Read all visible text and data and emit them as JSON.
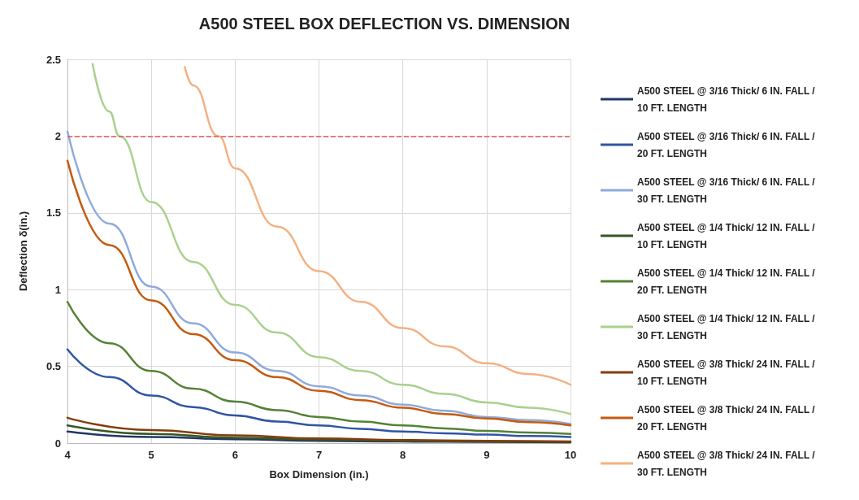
{
  "chart_data": {
    "type": "line",
    "title": "A500 STEEL BOX DEFLECTION VS. DIMENSION",
    "xlabel": "Box Dimension (in.)",
    "ylabel": "Deflection δ(in.)",
    "xlim": [
      4,
      10
    ],
    "xticks": [
      4,
      5,
      6,
      7,
      8,
      9,
      10
    ],
    "ylim": [
      0,
      2.5
    ],
    "yticks": [
      0,
      0.5,
      1,
      1.5,
      2,
      2.5
    ],
    "grid": true,
    "legend": "right",
    "series": [
      {
        "name": "A500 STEEL @ 3/16 Thick/ 6 IN. FALL / 10 FT. LENGTH",
        "color": "#203864",
        "x": [
          4,
          5,
          6,
          7,
          8,
          9,
          10
        ],
        "values": [
          0.075,
          0.04,
          0.025,
          0.015,
          0.01,
          0.008,
          0.005
        ]
      },
      {
        "name": "A500 STEEL @ 3/16 Thick/ 6 IN. FALL / 20 FT. LENGTH",
        "color": "#2f55a4",
        "x": [
          4,
          4.5,
          5,
          5.5,
          6,
          6.5,
          7,
          7.5,
          8,
          8.5,
          9,
          9.5,
          10
        ],
        "values": [
          0.61,
          0.43,
          0.31,
          0.235,
          0.18,
          0.14,
          0.115,
          0.093,
          0.075,
          0.064,
          0.055,
          0.046,
          0.04
        ]
      },
      {
        "name": "A500 STEEL @ 3/16 Thick/ 6 IN. FALL / 30 FT. LENGTH",
        "color": "#8faadc",
        "x": [
          4,
          4.5,
          5,
          5.5,
          6,
          6.5,
          7,
          7.5,
          8,
          8.5,
          9,
          9.5,
          10
        ],
        "values": [
          2.03,
          1.43,
          1.02,
          0.78,
          0.59,
          0.47,
          0.37,
          0.31,
          0.25,
          0.21,
          0.17,
          0.15,
          0.125
        ]
      },
      {
        "name": "A500 STEEL @ 1/4 Thick/ 12 IN. FALL / 10 FT. LENGTH",
        "color": "#375623",
        "x": [
          4,
          5,
          6,
          7,
          8,
          9,
          10
        ],
        "values": [
          0.115,
          0.06,
          0.035,
          0.022,
          0.015,
          0.01,
          0.008
        ]
      },
      {
        "name": "A500 STEEL @ 1/4 Thick/ 12 IN. FALL / 20 FT. LENGTH",
        "color": "#548235",
        "x": [
          4,
          4.5,
          5,
          5.5,
          6,
          6.5,
          7,
          7.5,
          8,
          8.5,
          9,
          9.5,
          10
        ],
        "values": [
          0.92,
          0.65,
          0.47,
          0.355,
          0.27,
          0.215,
          0.17,
          0.14,
          0.115,
          0.096,
          0.08,
          0.069,
          0.06
        ]
      },
      {
        "name": "A500 STEEL @ 1/4 Thick/ 12 IN. FALL / 30 FT. LENGTH",
        "color": "#a9d18e",
        "x": [
          4.3,
          4.5,
          4.62,
          5,
          5.5,
          6,
          6.5,
          7,
          7.5,
          8,
          8.5,
          9,
          9.5,
          10
        ],
        "values": [
          2.47,
          2.16,
          2.0,
          1.57,
          1.18,
          0.9,
          0.72,
          0.56,
          0.47,
          0.38,
          0.32,
          0.265,
          0.23,
          0.19
        ]
      },
      {
        "name": "A500 STEEL @ 3/8 Thick/ 24 IN. FALL / 10 FT. LENGTH",
        "color": "#843c0c",
        "x": [
          4,
          5,
          6,
          7,
          8,
          9,
          10
        ],
        "values": [
          0.165,
          0.085,
          0.05,
          0.03,
          0.02,
          0.015,
          0.01
        ]
      },
      {
        "name": "A500 STEEL @ 3/8 Thick/ 24 IN. FALL / 20 FT. LENGTH",
        "color": "#c55a11",
        "x": [
          4,
          4.5,
          5,
          5.5,
          6,
          6.5,
          7,
          7.5,
          8,
          8.5,
          9,
          9.5,
          10
        ],
        "values": [
          1.84,
          1.29,
          0.93,
          0.71,
          0.54,
          0.43,
          0.34,
          0.28,
          0.23,
          0.19,
          0.16,
          0.137,
          0.115
        ]
      },
      {
        "name": "A500 STEEL @ 3/8 Thick/ 24 IN. FALL / 30 FT. LENGTH",
        "color": "#f4b183",
        "x": [
          5.4,
          5.5,
          5.8,
          6,
          6.5,
          7,
          7.5,
          8,
          8.5,
          9,
          9.5,
          10
        ],
        "values": [
          2.45,
          2.33,
          2.0,
          1.79,
          1.41,
          1.12,
          0.92,
          0.75,
          0.63,
          0.52,
          0.45,
          0.38
        ]
      }
    ],
    "ref_lines": [
      {
        "axis": "y",
        "value": 2,
        "color": "#e05a5a",
        "line_style": "dashed"
      }
    ]
  }
}
